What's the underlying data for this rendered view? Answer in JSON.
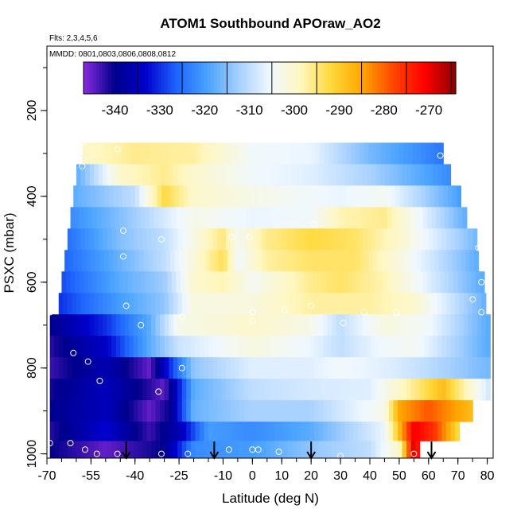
{
  "chart_data": {
    "type": "heatmap",
    "title": "ATOM1 Southbound APOraw_AO2",
    "subtitle": "Flts: 2,3,4,5,6",
    "annotation": "MMDD: 0801,0803,0806,0808,0812",
    "xlabel": "Latitude (deg N)",
    "ylabel": "PSXC (mbar)",
    "xlim": [
      -70,
      82
    ],
    "ylim": [
      1010,
      50
    ],
    "y_reversed": true,
    "x_ticks": [
      "-70",
      "-55",
      "-40",
      "-25",
      "-10",
      "0",
      "10",
      "20",
      "30",
      "40",
      "50",
      "60",
      "70",
      "80"
    ],
    "x_tick_values": [
      -70,
      -55,
      -40,
      -25,
      -10,
      0,
      10,
      20,
      30,
      40,
      50,
      60,
      70,
      80
    ],
    "y_ticks": [
      "200",
      "400",
      "600",
      "800",
      "1000"
    ],
    "y_tick_values": [
      200,
      400,
      600,
      800,
      1000
    ],
    "colorbar": {
      "ticks": [
        "-340",
        "-330",
        "-320",
        "-310",
        "-300",
        "-290",
        "-280",
        "-270"
      ],
      "tick_values": [
        -340,
        -330,
        -320,
        -310,
        -300,
        -290,
        -280,
        -270
      ],
      "range": [
        -347,
        -264
      ],
      "colors": [
        "#8b2be2",
        "#00008b",
        "#0000cd",
        "#1e64ff",
        "#4aa3ff",
        "#a6d0ff",
        "#f0f8ff",
        "#fff7c0",
        "#ffd83a",
        "#ffa500",
        "#ff4500",
        "#ff0000",
        "#8b0000"
      ]
    },
    "grid": false,
    "row_centers_mbar": [
      300,
      350,
      400,
      450,
      500,
      550,
      600,
      650,
      700,
      750,
      800,
      850,
      900,
      950,
      990
    ],
    "rows": [
      {
        "p": 300,
        "lat_range": [
          -58,
          64
        ],
        "anchors": [
          [
            -58,
            -300
          ],
          [
            -40,
            -296
          ],
          [
            -20,
            -297
          ],
          [
            0,
            -305
          ],
          [
            20,
            -306
          ],
          [
            40,
            -316
          ],
          [
            64,
            -324
          ]
        ]
      },
      {
        "p": 350,
        "lat_range": [
          -60,
          67
        ],
        "anchors": [
          [
            -60,
            -318
          ],
          [
            -45,
            -300
          ],
          [
            -30,
            -296
          ],
          [
            -20,
            -300
          ],
          [
            0,
            -305
          ],
          [
            20,
            -307
          ],
          [
            40,
            -312
          ],
          [
            67,
            -322
          ]
        ]
      },
      {
        "p": 400,
        "lat_range": [
          -61,
          71
        ],
        "anchors": [
          [
            -61,
            -318
          ],
          [
            -40,
            -310
          ],
          [
            -30,
            -292
          ],
          [
            -20,
            -300
          ],
          [
            0,
            -303
          ],
          [
            20,
            -305
          ],
          [
            30,
            -306
          ],
          [
            45,
            -304
          ],
          [
            71,
            -320
          ]
        ]
      },
      {
        "p": 450,
        "lat_range": [
          -62,
          73
        ],
        "anchors": [
          [
            -62,
            -322
          ],
          [
            -45,
            -315
          ],
          [
            -30,
            -308
          ],
          [
            -20,
            -303
          ],
          [
            0,
            -306
          ],
          [
            20,
            -305
          ],
          [
            30,
            -298
          ],
          [
            45,
            -296
          ],
          [
            73,
            -318
          ]
        ]
      },
      {
        "p": 500,
        "lat_range": [
          -63,
          76
        ],
        "anchors": [
          [
            -63,
            -325
          ],
          [
            -45,
            -315
          ],
          [
            -30,
            -310
          ],
          [
            -10,
            -295
          ],
          [
            -5,
            -304
          ],
          [
            5,
            -296
          ],
          [
            20,
            -292
          ],
          [
            35,
            -294
          ],
          [
            50,
            -300
          ],
          [
            76,
            -316
          ]
        ]
      },
      {
        "p": 550,
        "lat_range": [
          -64,
          77
        ],
        "anchors": [
          [
            -64,
            -326
          ],
          [
            -45,
            -317
          ],
          [
            -30,
            -310
          ],
          [
            -10,
            -293
          ],
          [
            -5,
            -305
          ],
          [
            5,
            -297
          ],
          [
            20,
            -294
          ],
          [
            35,
            -294
          ],
          [
            50,
            -302
          ],
          [
            77,
            -318
          ]
        ]
      },
      {
        "p": 600,
        "lat_range": [
          -65,
          78
        ],
        "anchors": [
          [
            -65,
            -328
          ],
          [
            -45,
            -318
          ],
          [
            -30,
            -313
          ],
          [
            -20,
            -300
          ],
          [
            -10,
            -298
          ],
          [
            0,
            -304
          ],
          [
            20,
            -296
          ],
          [
            30,
            -294
          ],
          [
            45,
            -298
          ],
          [
            78,
            -318
          ]
        ]
      },
      {
        "p": 650,
        "lat_range": [
          -66,
          79
        ],
        "anchors": [
          [
            -66,
            -330
          ],
          [
            -45,
            -320
          ],
          [
            -30,
            -314
          ],
          [
            -20,
            -302
          ],
          [
            0,
            -302
          ],
          [
            20,
            -297
          ],
          [
            40,
            -297
          ],
          [
            55,
            -300
          ],
          [
            79,
            -317
          ]
        ]
      },
      {
        "p": 700,
        "lat_range": [
          -69,
          80
        ],
        "anchors": [
          [
            -69,
            -340
          ],
          [
            -50,
            -330
          ],
          [
            -35,
            -318
          ],
          [
            -25,
            -303
          ],
          [
            0,
            -300
          ],
          [
            20,
            -303
          ],
          [
            30,
            -310
          ],
          [
            45,
            -302
          ],
          [
            60,
            -305
          ],
          [
            80,
            -318
          ]
        ]
      },
      {
        "p": 750,
        "lat_range": [
          -69,
          80
        ],
        "anchors": [
          [
            -69,
            -342
          ],
          [
            -50,
            -334
          ],
          [
            -35,
            -318
          ],
          [
            -25,
            -309
          ],
          [
            0,
            -302
          ],
          [
            20,
            -306
          ],
          [
            30,
            -310
          ],
          [
            45,
            -305
          ],
          [
            55,
            -304
          ],
          [
            80,
            -318
          ]
        ]
      },
      {
        "p": 800,
        "lat_range": [
          -69,
          80
        ],
        "anchors": [
          [
            -69,
            -343
          ],
          [
            -50,
            -336
          ],
          [
            -35,
            -345
          ],
          [
            -28,
            -330
          ],
          [
            -20,
            -314
          ],
          [
            0,
            -307
          ],
          [
            20,
            -307
          ],
          [
            30,
            -305
          ],
          [
            45,
            -307
          ],
          [
            55,
            -309
          ],
          [
            80,
            -316
          ]
        ]
      },
      {
        "p": 850,
        "lat_range": [
          -69,
          80
        ],
        "anchors": [
          [
            -69,
            -341
          ],
          [
            -50,
            -335
          ],
          [
            -35,
            -342
          ],
          [
            -30,
            -345
          ],
          [
            -20,
            -318
          ],
          [
            0,
            -310
          ],
          [
            20,
            -308
          ],
          [
            40,
            -307
          ],
          [
            50,
            -300
          ],
          [
            65,
            -288
          ],
          [
            80,
            -308
          ]
        ]
      },
      {
        "p": 900,
        "lat_range": [
          -69,
          75
        ],
        "anchors": [
          [
            -69,
            -340
          ],
          [
            -50,
            -335
          ],
          [
            -35,
            -345
          ],
          [
            -28,
            -340
          ],
          [
            -20,
            -317
          ],
          [
            0,
            -312
          ],
          [
            20,
            -312
          ],
          [
            45,
            -303
          ],
          [
            50,
            -285
          ],
          [
            60,
            -279
          ],
          [
            75,
            -288
          ]
        ]
      },
      {
        "p": 950,
        "lat_range": [
          -69,
          70
        ],
        "anchors": [
          [
            -69,
            -342
          ],
          [
            -50,
            -333
          ],
          [
            -35,
            -343
          ],
          [
            -25,
            -336
          ],
          [
            -15,
            -320
          ],
          [
            0,
            -322
          ],
          [
            20,
            -318
          ],
          [
            45,
            -306
          ],
          [
            55,
            -270
          ],
          [
            62,
            -276
          ],
          [
            70,
            -292
          ]
        ]
      },
      {
        "p": 990,
        "lat_range": [
          -69,
          57
        ],
        "anchors": [
          [
            -69,
            -340
          ],
          [
            -50,
            -345
          ],
          [
            -30,
            -340
          ],
          [
            -20,
            -322
          ],
          [
            0,
            -320
          ],
          [
            20,
            -314
          ],
          [
            40,
            -310
          ],
          [
            50,
            -300
          ],
          [
            55,
            -268
          ],
          [
            57,
            -275
          ]
        ]
      }
    ],
    "points": [
      {
        "lat": -58,
        "p": 275
      },
      {
        "lat": -58,
        "p": 330
      },
      {
        "lat": -46,
        "p": 290
      },
      {
        "lat": 64,
        "p": 305
      },
      {
        "lat": -44,
        "p": 480
      },
      {
        "lat": -31,
        "p": 500
      },
      {
        "lat": -7,
        "p": 495
      },
      {
        "lat": -1,
        "p": 495
      },
      {
        "lat": 21,
        "p": 465
      },
      {
        "lat": -44,
        "p": 540
      },
      {
        "lat": 77,
        "p": 520
      },
      {
        "lat": 78,
        "p": 600
      },
      {
        "lat": 75,
        "p": 640
      },
      {
        "lat": -43,
        "p": 655
      },
      {
        "lat": -69,
        "p": 670
      },
      {
        "lat": -38,
        "p": 700
      },
      {
        "lat": -24,
        "p": 680
      },
      {
        "lat": 0,
        "p": 670
      },
      {
        "lat": 0,
        "p": 690
      },
      {
        "lat": 11,
        "p": 665
      },
      {
        "lat": 20,
        "p": 655
      },
      {
        "lat": 31,
        "p": 695
      },
      {
        "lat": 38,
        "p": 670
      },
      {
        "lat": 49,
        "p": 670
      },
      {
        "lat": 78,
        "p": 670
      },
      {
        "lat": -61,
        "p": 765
      },
      {
        "lat": -56,
        "p": 785
      },
      {
        "lat": -52,
        "p": 830
      },
      {
        "lat": -24,
        "p": 800
      },
      {
        "lat": -32,
        "p": 855
      },
      {
        "lat": 79,
        "p": 900
      },
      {
        "lat": -69,
        "p": 975
      },
      {
        "lat": -62,
        "p": 975
      },
      {
        "lat": -57,
        "p": 990
      },
      {
        "lat": -53,
        "p": 1000
      },
      {
        "lat": -46,
        "p": 1000
      },
      {
        "lat": -31,
        "p": 1000
      },
      {
        "lat": -22,
        "p": 1000
      },
      {
        "lat": -8,
        "p": 990
      },
      {
        "lat": 0,
        "p": 990
      },
      {
        "lat": 2,
        "p": 990
      },
      {
        "lat": 9,
        "p": 995
      },
      {
        "lat": 30,
        "p": 1005
      },
      {
        "lat": 55,
        "p": 1000
      }
    ],
    "arrows_lat": [
      -43,
      -13,
      20,
      61
    ]
  }
}
